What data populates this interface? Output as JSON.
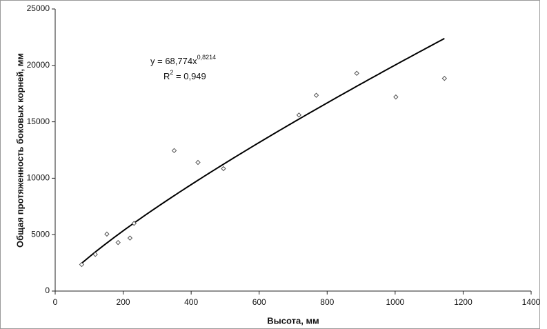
{
  "chart_data": {
    "type": "scatter",
    "x_label": "Высота, мм",
    "y_label": "Общая протяженность боковых корней, мм",
    "x": [
      78,
      118,
      152,
      185,
      220,
      232,
      350,
      420,
      495,
      717,
      768,
      887,
      1002,
      1145
    ],
    "series": [
      {
        "color": "#555555",
        "values": [
          2350,
          3250,
          5050,
          4300,
          4700,
          6000,
          12450,
          11400,
          10850,
          15600,
          17350,
          19300,
          17200,
          18850
        ]
      }
    ],
    "trendline": {
      "coefficient": 68.774,
      "exponent": 0.8214,
      "x_range": [
        78,
        1145
      ],
      "equation": "y = 68,774x",
      "equation_exponent": "0,8214",
      "r2_prefix": "R",
      "r2_sup": "2",
      "r2_text": " = 0,949"
    },
    "xlim": [
      0,
      1400
    ],
    "xticks": [
      0,
      200,
      400,
      600,
      800,
      1000,
      1200,
      1400
    ],
    "ylim": [
      0,
      25000
    ],
    "yticks": [
      0,
      5000,
      10000,
      15000,
      20000,
      25000
    ]
  }
}
